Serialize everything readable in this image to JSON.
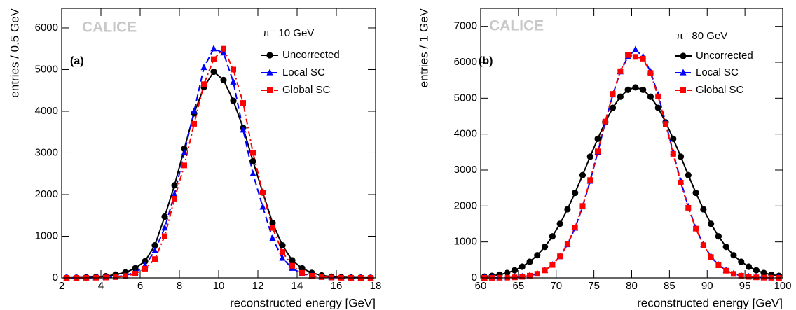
{
  "charts": [
    {
      "type": "line",
      "watermark": "CALICE",
      "panel_label": "(a)",
      "legend_title": "π⁻ 10 GeV",
      "xlabel": "reconstructed energy [GeV]",
      "ylabel": "entries / 0.5 GeV",
      "xlim": [
        2,
        18
      ],
      "xticks": [
        2,
        4,
        6,
        8,
        10,
        12,
        14,
        16,
        18
      ],
      "ylim": [
        0,
        6470
      ],
      "yticks": [
        0,
        1000,
        2000,
        3000,
        4000,
        5000,
        6000
      ],
      "x": [
        2.25,
        2.75,
        3.25,
        3.75,
        4.25,
        4.75,
        5.25,
        5.75,
        6.25,
        6.75,
        7.25,
        7.75,
        8.25,
        8.75,
        9.25,
        9.75,
        10.25,
        10.75,
        11.25,
        11.75,
        12.25,
        12.75,
        13.25,
        13.75,
        14.25,
        14.75,
        15.25,
        15.75,
        16.25,
        16.75,
        17.25,
        17.75
      ],
      "series": [
        {
          "name": "Uncorrected",
          "color": "#000000",
          "marker": "circle",
          "line_style": "solid",
          "values": [
            2,
            5,
            10,
            20,
            40,
            80,
            130,
            230,
            400,
            780,
            1470,
            2220,
            3100,
            3950,
            4580,
            4950,
            4750,
            4250,
            3600,
            2800,
            2050,
            1320,
            780,
            420,
            230,
            120,
            60,
            30,
            15,
            8,
            4,
            2
          ]
        },
        {
          "name": "Local SC",
          "color": "#0000ff",
          "marker": "triangle",
          "line_style": "dashed",
          "values": [
            0,
            1,
            2,
            5,
            10,
            25,
            60,
            130,
            300,
            650,
            1200,
            2000,
            3000,
            4000,
            5050,
            5500,
            5400,
            4700,
            3550,
            2500,
            1700,
            950,
            470,
            230,
            100,
            45,
            20,
            8,
            3,
            1,
            0,
            0
          ]
        },
        {
          "name": "Global SC",
          "color": "#ff0000",
          "marker": "square",
          "line_style": "dashdot",
          "values": [
            0,
            1,
            2,
            4,
            8,
            20,
            45,
            100,
            220,
            450,
            1000,
            1900,
            2700,
            3700,
            4650,
            5250,
            5500,
            5000,
            4200,
            3000,
            2050,
            1200,
            620,
            290,
            120,
            50,
            20,
            8,
            3,
            1,
            0,
            0
          ]
        }
      ]
    },
    {
      "type": "line",
      "watermark": "CALICE",
      "panel_label": "(b)",
      "legend_title": "π⁻ 80 GeV",
      "xlabel": "reconstructed energy [GeV]",
      "ylabel": "entries / 1 GeV",
      "xlim": [
        60,
        100
      ],
      "xticks": [
        60,
        65,
        70,
        75,
        80,
        85,
        90,
        95,
        100
      ],
      "ylim": [
        0,
        7500
      ],
      "yticks": [
        0,
        1000,
        2000,
        3000,
        4000,
        5000,
        6000,
        7000
      ],
      "x": [
        60.5,
        61.5,
        62.5,
        63.5,
        64.5,
        65.5,
        66.5,
        67.5,
        68.5,
        69.5,
        70.5,
        71.5,
        72.5,
        73.5,
        74.5,
        75.5,
        76.5,
        77.5,
        78.5,
        79.5,
        80.5,
        81.5,
        82.5,
        83.5,
        84.5,
        85.5,
        86.5,
        87.5,
        88.5,
        89.5,
        90.5,
        91.5,
        92.5,
        93.5,
        94.5,
        95.5,
        96.5,
        97.5,
        98.5,
        99.5
      ],
      "series": [
        {
          "name": "Uncorrected",
          "color": "#000000",
          "marker": "circle",
          "line_style": "solid",
          "values": [
            35,
            56,
            90,
            138,
            211,
            312,
            449,
            629,
            864,
            1155,
            1504,
            1910,
            2368,
            2859,
            3372,
            3870,
            4331,
            4733,
            5040,
            5234,
            5300,
            5234,
            5040,
            4733,
            4331,
            3870,
            3372,
            2859,
            2368,
            1910,
            1504,
            1155,
            864,
            629,
            449,
            312,
            211,
            138,
            90,
            56
          ]
        },
        {
          "name": "Local SC",
          "color": "#0000ff",
          "marker": "triangle",
          "line_style": "dashed",
          "values": [
            0,
            1,
            3,
            6,
            15,
            31,
            61,
            113,
            208,
            359,
            592,
            926,
            1386,
            1978,
            2690,
            3490,
            4317,
            5093,
            5733,
            6153,
            6350,
            6153,
            5733,
            5093,
            4317,
            3490,
            2690,
            1978,
            1386,
            926,
            592,
            359,
            208,
            113,
            61,
            31,
            15,
            6,
            3,
            1
          ]
        },
        {
          "name": "Global SC",
          "color": "#ff0000",
          "marker": "square",
          "line_style": "dashdot",
          "values": [
            0,
            1,
            3,
            6,
            15,
            31,
            61,
            113,
            208,
            359,
            600,
            940,
            1400,
            2000,
            2720,
            3520,
            4350,
            5120,
            5750,
            6200,
            6150,
            6100,
            5700,
            5050,
            4280,
            3450,
            2650,
            1950,
            1370,
            910,
            580,
            350,
            200,
            110,
            60,
            30,
            15,
            6,
            3,
            1
          ]
        }
      ]
    }
  ]
}
